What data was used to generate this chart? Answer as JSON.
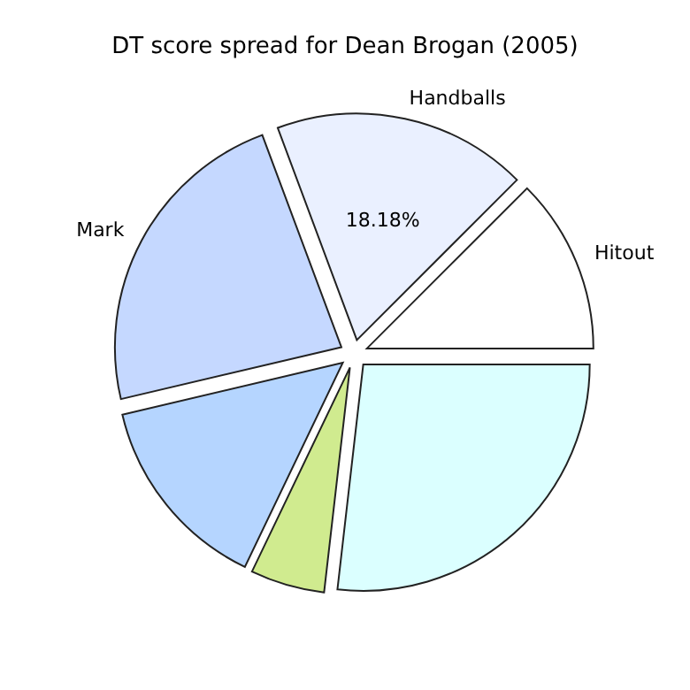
{
  "chart_data": {
    "type": "pie",
    "title": "DT score spread for Dean Brogan (2005)",
    "categories": [
      "Hitout",
      "Handballs",
      "Mark",
      null,
      null,
      null
    ],
    "values": [
      12.5,
      18.18,
      23.0,
      14.2,
      5.3,
      26.82
    ],
    "colors": [
      "#ffffff",
      "#eaf0ff",
      "#c5d8ff",
      "#b5d5ff",
      "#d0eb8f",
      "#dbffff"
    ],
    "value_labels": [
      null,
      "18.18%",
      null,
      null,
      null,
      null
    ]
  }
}
